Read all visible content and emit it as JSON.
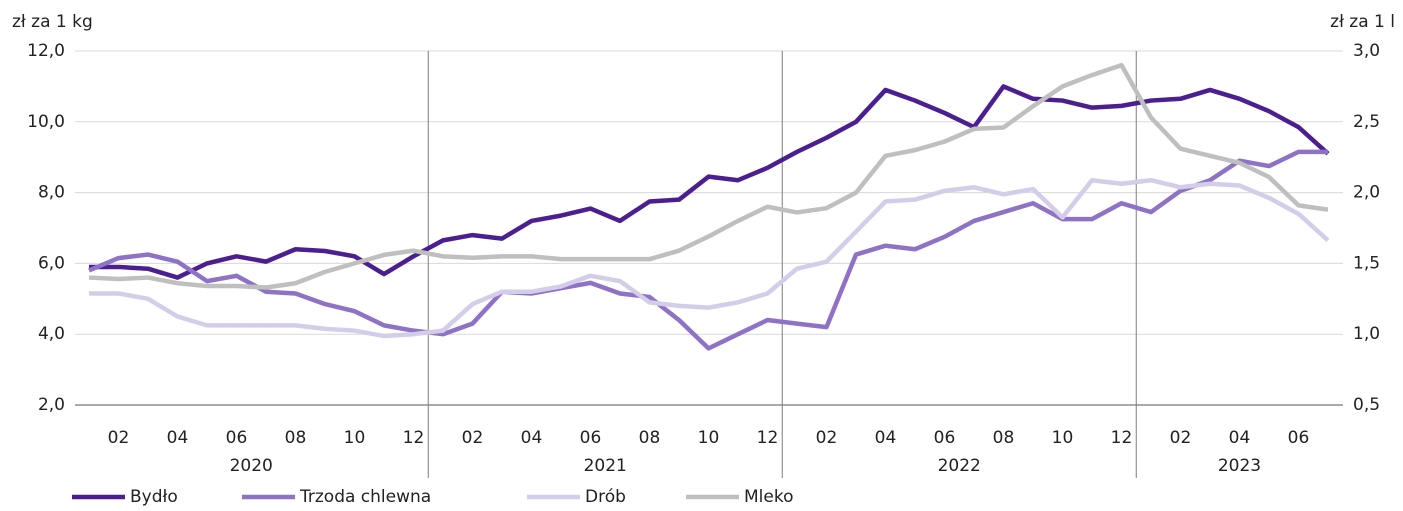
{
  "chart_data": {
    "type": "line",
    "y_label": "zł za 1 kg",
    "y2_label": "zł za 1 l",
    "categories": [
      null,
      "02",
      null,
      "04",
      null,
      "06",
      null,
      "08",
      null,
      "10",
      null,
      "12",
      null,
      "02",
      null,
      "04",
      null,
      "06",
      null,
      "08",
      null,
      "10",
      null,
      "12",
      null,
      "02",
      null,
      "04",
      null,
      "06",
      null,
      "08",
      null,
      "10",
      null,
      "12",
      null,
      "02",
      null,
      "04",
      null,
      "06",
      null
    ],
    "years": [
      "2020",
      "2021",
      "2022",
      "2023"
    ],
    "ylim": [
      2,
      12
    ],
    "yticks": [
      {
        "value": 2,
        "label": "2,0"
      },
      {
        "value": 4,
        "label": "4,0"
      },
      {
        "value": 6,
        "label": "6,0"
      },
      {
        "value": 8,
        "label": "8,0"
      },
      {
        "value": 10,
        "label": "10,0"
      },
      {
        "value": 12,
        "label": "12,0"
      }
    ],
    "y2lim": [
      0.5,
      3
    ],
    "y2ticks": [
      {
        "value": 0.5,
        "label": "0,5"
      },
      {
        "value": 1,
        "label": "1,0"
      },
      {
        "value": 1.5,
        "label": "1,5"
      },
      {
        "value": 2,
        "label": "2,0"
      },
      {
        "value": 2.5,
        "label": "2,5"
      },
      {
        "value": 3,
        "label": "3,0"
      }
    ],
    "grid": true,
    "legend": "bottom-left",
    "series": [
      {
        "name": "Bydło",
        "color": "#4b1f8f",
        "values": [
          5.9,
          5.9,
          5.85,
          5.6,
          6.0,
          6.2,
          6.05,
          6.4,
          6.35,
          6.2,
          5.7,
          6.2,
          6.65,
          6.8,
          6.7,
          7.2,
          7.35,
          7.55,
          7.2,
          7.75,
          7.8,
          8.45,
          8.35,
          8.7,
          9.15,
          9.55,
          10.0,
          10.9,
          10.6,
          10.25,
          9.85,
          11.0,
          10.65,
          10.6,
          10.4,
          10.45,
          10.6,
          10.65,
          10.9,
          10.65,
          10.3,
          9.85,
          9.1
        ]
      },
      {
        "name": "Trzoda chlewna",
        "color": "#8e72c6",
        "values": [
          5.8,
          6.15,
          6.25,
          6.05,
          5.5,
          5.65,
          5.2,
          5.15,
          4.85,
          4.65,
          4.25,
          4.1,
          4.0,
          4.3,
          5.2,
          5.15,
          5.3,
          5.45,
          5.15,
          5.05,
          4.4,
          3.6,
          4.0,
          4.4,
          4.3,
          4.2,
          6.25,
          6.5,
          6.4,
          6.75,
          7.2,
          7.45,
          7.7,
          7.25,
          7.25,
          7.7,
          7.45,
          8.05,
          8.35,
          8.9,
          8.75,
          9.15,
          9.15
        ]
      },
      {
        "name": "Drób",
        "color": "#d4cde9",
        "values": [
          5.15,
          5.15,
          5.0,
          4.5,
          4.25,
          4.25,
          4.25,
          4.25,
          4.15,
          4.1,
          3.95,
          4.0,
          4.1,
          4.85,
          5.2,
          5.2,
          5.35,
          5.65,
          5.5,
          4.9,
          4.8,
          4.75,
          4.9,
          5.15,
          5.85,
          6.05,
          6.9,
          7.75,
          7.8,
          8.05,
          8.15,
          7.95,
          8.1,
          7.3,
          8.35,
          8.25,
          8.35,
          8.15,
          8.25,
          8.2,
          7.85,
          7.4,
          6.65
        ]
      },
      {
        "name": "Mleko",
        "color": "#bfbfbf",
        "axis": "y2",
        "values": [
          1.4,
          1.39,
          1.4,
          1.36,
          1.34,
          1.34,
          1.33,
          1.36,
          1.44,
          1.5,
          1.56,
          1.59,
          1.55,
          1.54,
          1.55,
          1.55,
          1.53,
          1.53,
          1.53,
          1.53,
          1.59,
          1.69,
          1.8,
          1.9,
          1.86,
          1.89,
          2.0,
          2.26,
          2.3,
          2.36,
          2.45,
          2.46,
          2.61,
          2.75,
          2.83,
          2.9,
          2.53,
          2.31,
          2.26,
          2.21,
          2.11,
          1.91,
          1.88
        ]
      }
    ]
  }
}
